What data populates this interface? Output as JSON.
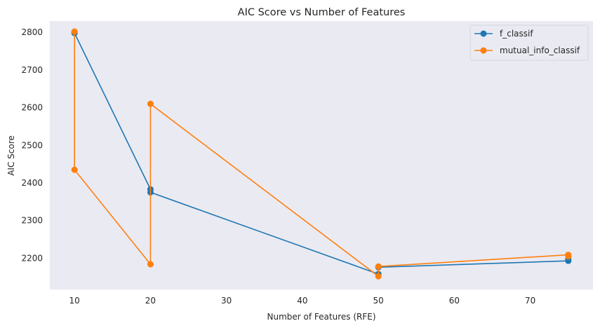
{
  "chart_data": {
    "type": "line",
    "title": "AIC Score vs Number of Features",
    "xlabel": "Number of Features (RFE)",
    "ylabel": "AIC Score",
    "xlim": [
      6.75,
      78.25
    ],
    "ylim": [
      2117,
      2830
    ],
    "xticks": [
      10,
      20,
      30,
      40,
      50,
      60,
      70
    ],
    "yticks": [
      2200,
      2300,
      2400,
      2500,
      2600,
      2700,
      2800
    ],
    "grid": false,
    "background": "#eaeaf2",
    "legend_position": "top-right",
    "series": [
      {
        "name": "f_classif",
        "color": "#1f77b4",
        "marker": "circle",
        "x": [
          10,
          10,
          20,
          20,
          50,
          50,
          75,
          75
        ],
        "y": [
          2800,
          2798,
          2383,
          2375,
          2158,
          2176,
          2193,
          2197
        ]
      },
      {
        "name": "mutual_info_classif",
        "color": "#ff7f0e",
        "marker": "circle",
        "x": [
          10,
          10,
          20,
          20,
          50,
          50,
          75,
          75
        ],
        "y": [
          2802,
          2435,
          2184,
          2610,
          2152,
          2178,
          2209,
          2205
        ]
      }
    ]
  }
}
